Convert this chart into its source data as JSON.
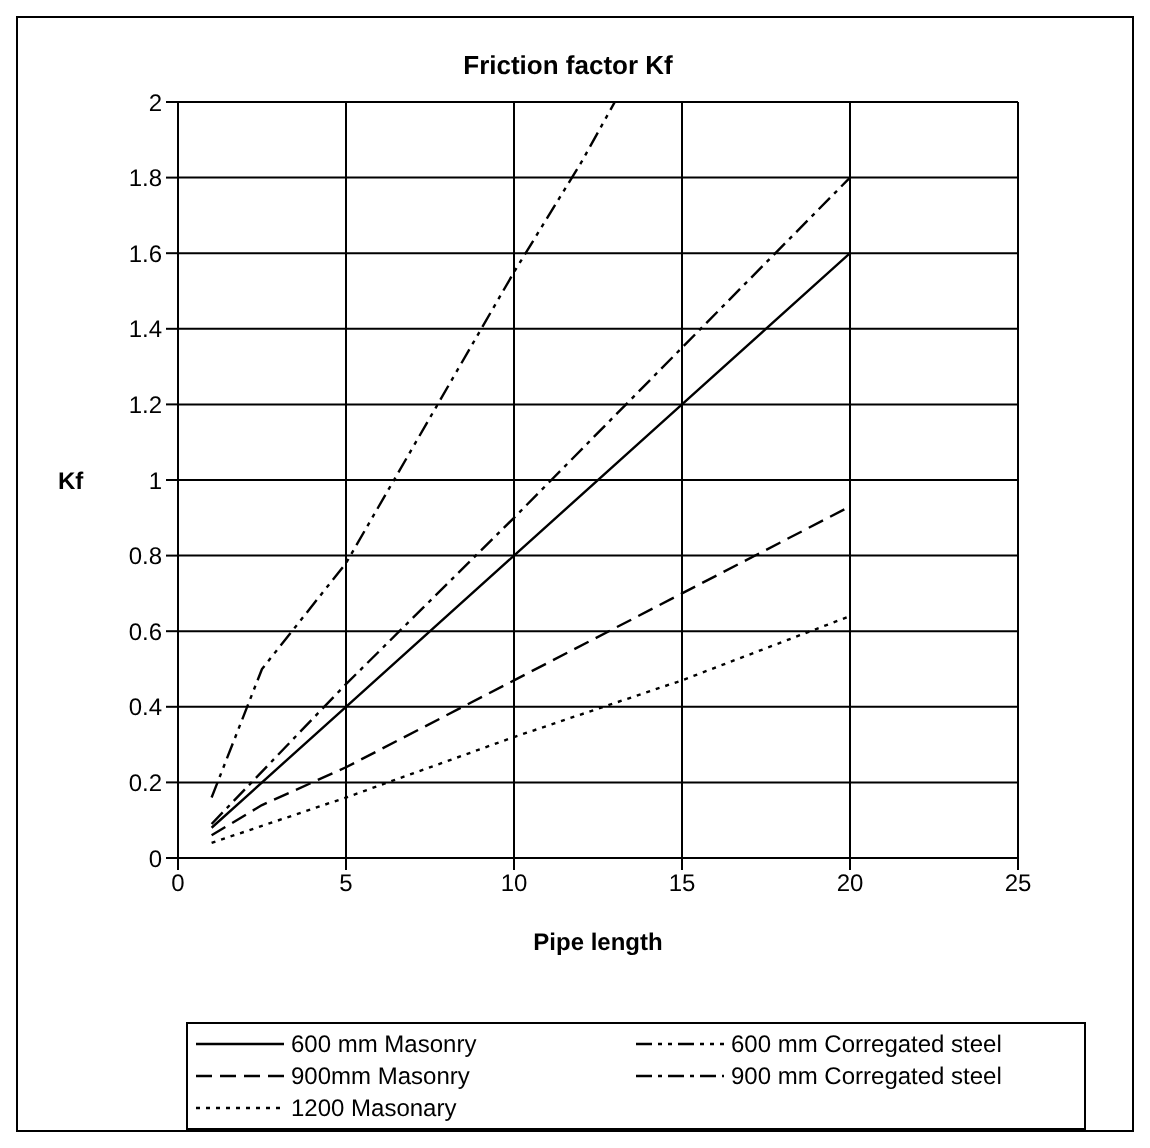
{
  "chart_data": {
    "type": "line",
    "title": "Friction factor Kf",
    "xlabel": "Pipe length",
    "ylabel": "Kf",
    "xlim": [
      0,
      25
    ],
    "xticks": [
      0,
      5,
      10,
      15,
      20,
      25
    ],
    "ylim": [
      0,
      2
    ],
    "yticks": [
      0,
      0.2,
      0.4,
      0.6,
      0.8,
      1,
      1.2,
      1.4,
      1.6,
      1.8,
      2
    ],
    "grid": true,
    "legend": "bottom",
    "marker": "none",
    "series": [
      {
        "name": "600 mm Masonry",
        "color": "#000000",
        "line_style": "solid",
        "x": [
          1,
          2,
          5,
          10,
          15,
          20
        ],
        "values": [
          0.08,
          0.16,
          0.4,
          0.8,
          1.2,
          1.6
        ]
      },
      {
        "name": "600 mm Corregated steel",
        "color": "#000000",
        "line_style": "dashdotdot",
        "x": [
          1,
          2.5,
          5,
          10,
          12,
          13
        ],
        "values": [
          0.16,
          0.5,
          0.78,
          1.55,
          1.84,
          2
        ]
      },
      {
        "name": "900mm Masonry",
        "color": "#000000",
        "line_style": "dashed",
        "x": [
          1,
          2.5,
          5,
          10,
          15,
          20
        ],
        "values": [
          0.06,
          0.14,
          0.24,
          0.47,
          0.7,
          0.93
        ]
      },
      {
        "name": "900 mm Corregated steel",
        "color": "#000000",
        "line_style": "dashdot",
        "x": [
          1,
          5,
          10,
          15,
          20
        ],
        "values": [
          0.09,
          0.46,
          0.9,
          1.35,
          1.8
        ]
      },
      {
        "name": "1200 Masonary",
        "color": "#000000",
        "line_style": "dotted",
        "x": [
          1,
          5,
          10,
          15,
          20
        ],
        "values": [
          0.04,
          0.16,
          0.32,
          0.47,
          0.64
        ]
      }
    ]
  }
}
